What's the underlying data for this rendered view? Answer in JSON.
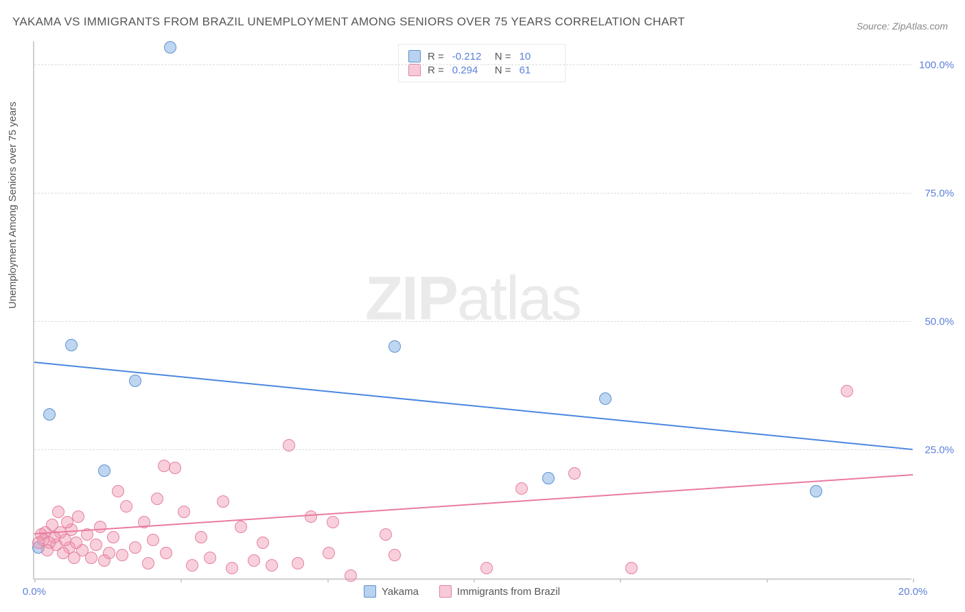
{
  "title": "YAKAMA VS IMMIGRANTS FROM BRAZIL UNEMPLOYMENT AMONG SENIORS OVER 75 YEARS CORRELATION CHART",
  "source_label": "Source: ZipAtlas.com",
  "ylabel": "Unemployment Among Seniors over 75 years",
  "watermark_bold": "ZIP",
  "watermark_rest": "atlas",
  "chart": {
    "type": "scatter",
    "xlim": [
      0,
      20
    ],
    "ylim": [
      0,
      105
    ],
    "xtick_positions": [
      0,
      3.33,
      6.67,
      10,
      13.33,
      16.67,
      20
    ],
    "xtick_labels": [
      "0.0%",
      "",
      "",
      "",
      "",
      "",
      "20.0%"
    ],
    "ytick_positions": [
      25,
      50,
      75,
      100
    ],
    "ytick_labels": [
      "25.0%",
      "50.0%",
      "75.0%",
      "100.0%"
    ],
    "grid_color": "#dcdcdc",
    "background_color": "#ffffff",
    "series": [
      {
        "name": "Yakama",
        "color_fill": "rgba(138,180,230,0.55)",
        "color_stroke": "#5b8fd0",
        "trend_color": "#4a86e0",
        "R": "-0.212",
        "N": "10",
        "trend": {
          "x1": 0,
          "y1": 42,
          "x2": 20,
          "y2": 25
        },
        "points": [
          {
            "x": 3.1,
            "y": 103.5
          },
          {
            "x": 0.85,
            "y": 45.5
          },
          {
            "x": 0.35,
            "y": 32
          },
          {
            "x": 2.3,
            "y": 38.5
          },
          {
            "x": 8.2,
            "y": 45.2
          },
          {
            "x": 13.0,
            "y": 35
          },
          {
            "x": 1.6,
            "y": 21
          },
          {
            "x": 11.7,
            "y": 19.5
          },
          {
            "x": 17.8,
            "y": 17
          },
          {
            "x": 0.1,
            "y": 6
          }
        ]
      },
      {
        "name": "Immigrants from Brazil",
        "color_fill": "rgba(240,150,175,0.45)",
        "color_stroke": "#e57f9f",
        "trend_color": "#ea7aa0",
        "R": "0.294",
        "N": "61",
        "trend": {
          "x1": 0,
          "y1": 8.5,
          "x2": 20,
          "y2": 20
        },
        "points": [
          {
            "x": 18.5,
            "y": 36.5
          },
          {
            "x": 12.3,
            "y": 20.5
          },
          {
            "x": 11.1,
            "y": 17.5
          },
          {
            "x": 13.6,
            "y": 2
          },
          {
            "x": 10.3,
            "y": 2
          },
          {
            "x": 8.2,
            "y": 4.5
          },
          {
            "x": 8.0,
            "y": 8.5
          },
          {
            "x": 7.2,
            "y": 0.5
          },
          {
            "x": 6.8,
            "y": 11
          },
          {
            "x": 6.7,
            "y": 5
          },
          {
            "x": 6.3,
            "y": 12
          },
          {
            "x": 6.0,
            "y": 3
          },
          {
            "x": 5.8,
            "y": 26
          },
          {
            "x": 5.4,
            "y": 2.5
          },
          {
            "x": 5.2,
            "y": 7
          },
          {
            "x": 5.0,
            "y": 3.5
          },
          {
            "x": 4.7,
            "y": 10
          },
          {
            "x": 4.5,
            "y": 2
          },
          {
            "x": 4.3,
            "y": 15
          },
          {
            "x": 4.0,
            "y": 4
          },
          {
            "x": 3.8,
            "y": 8
          },
          {
            "x": 3.6,
            "y": 2.5
          },
          {
            "x": 3.4,
            "y": 13
          },
          {
            "x": 3.2,
            "y": 21.5
          },
          {
            "x": 3.0,
            "y": 5
          },
          {
            "x": 2.95,
            "y": 22
          },
          {
            "x": 2.8,
            "y": 15.5
          },
          {
            "x": 2.7,
            "y": 7.5
          },
          {
            "x": 2.6,
            "y": 3
          },
          {
            "x": 2.5,
            "y": 11
          },
          {
            "x": 2.3,
            "y": 6
          },
          {
            "x": 2.1,
            "y": 14
          },
          {
            "x": 2.0,
            "y": 4.5
          },
          {
            "x": 1.9,
            "y": 17
          },
          {
            "x": 1.8,
            "y": 8
          },
          {
            "x": 1.7,
            "y": 5
          },
          {
            "x": 1.6,
            "y": 3.5
          },
          {
            "x": 1.5,
            "y": 10
          },
          {
            "x": 1.4,
            "y": 6.5
          },
          {
            "x": 1.3,
            "y": 4
          },
          {
            "x": 1.2,
            "y": 8.5
          },
          {
            "x": 1.1,
            "y": 5.5
          },
          {
            "x": 1.0,
            "y": 12
          },
          {
            "x": 0.95,
            "y": 7
          },
          {
            "x": 0.9,
            "y": 4
          },
          {
            "x": 0.85,
            "y": 9.5
          },
          {
            "x": 0.8,
            "y": 6
          },
          {
            "x": 0.75,
            "y": 11
          },
          {
            "x": 0.7,
            "y": 7.5
          },
          {
            "x": 0.65,
            "y": 5
          },
          {
            "x": 0.6,
            "y": 9
          },
          {
            "x": 0.55,
            "y": 13
          },
          {
            "x": 0.5,
            "y": 6.5
          },
          {
            "x": 0.45,
            "y": 8
          },
          {
            "x": 0.4,
            "y": 10.5
          },
          {
            "x": 0.35,
            "y": 7
          },
          {
            "x": 0.3,
            "y": 5.5
          },
          {
            "x": 0.25,
            "y": 9
          },
          {
            "x": 0.2,
            "y": 7.5
          },
          {
            "x": 0.15,
            "y": 8.5
          },
          {
            "x": 0.1,
            "y": 7
          }
        ]
      }
    ]
  },
  "legend_bottom": [
    {
      "swatch": "blue",
      "label": "Yakama"
    },
    {
      "swatch": "pink",
      "label": "Immigrants from Brazil"
    }
  ]
}
